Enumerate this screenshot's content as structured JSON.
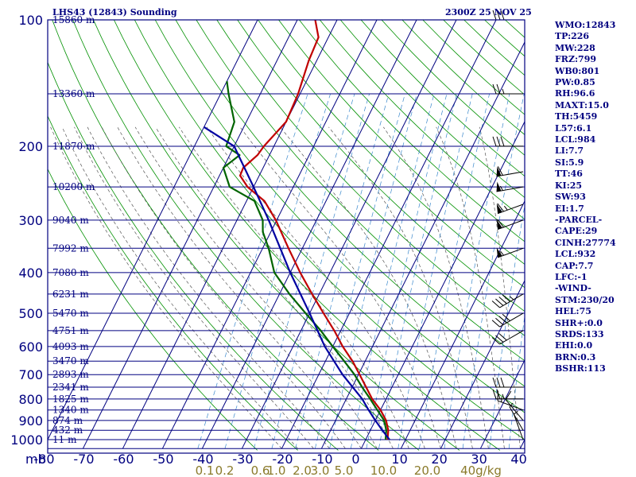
{
  "header": {
    "station_title": "LHS43 (12843) Sounding",
    "valid_time": "2300Z 25 NOV 25"
  },
  "chart_data": {
    "type": "skew-t",
    "pressure_axis": {
      "unit_label": "mb",
      "ticks": [
        100,
        200,
        300,
        400,
        500,
        600,
        700,
        800,
        900,
        1000
      ],
      "range": [
        100,
        1050
      ]
    },
    "temperature_axis": {
      "ticks": [
        "-80",
        "-70",
        "-60",
        "-50",
        "-40",
        "-30",
        "-20",
        "-10",
        "0",
        "10",
        "20",
        "30",
        "40"
      ],
      "range": [
        -80,
        40
      ]
    },
    "height_levels": [
      {
        "p": 100,
        "label": "15860 m"
      },
      {
        "p": 150,
        "label": "13360 m"
      },
      {
        "p": 200,
        "label": "11870 m"
      },
      {
        "p": 250,
        "label": "10200 m"
      },
      {
        "p": 300,
        "label": "9040 m"
      },
      {
        "p": 350,
        "label": "7992 m"
      },
      {
        "p": 400,
        "label": "7080 m"
      },
      {
        "p": 450,
        "label": "6231 m"
      },
      {
        "p": 500,
        "label": "5470 m"
      },
      {
        "p": 550,
        "label": "4751 m"
      },
      {
        "p": 600,
        "label": "4093 m"
      },
      {
        "p": 650,
        "label": "3470 m"
      },
      {
        "p": 700,
        "label": "2893 m"
      },
      {
        "p": 750,
        "label": "2341 m"
      },
      {
        "p": 800,
        "label": "1825 m"
      },
      {
        "p": 850,
        "label": "1340 m"
      },
      {
        "p": 900,
        "label": "874 m"
      },
      {
        "p": 950,
        "label": "432 m"
      },
      {
        "p": 1000,
        "label": "11 m"
      }
    ],
    "mixing_ratio_labels": [
      {
        "label": "0.1",
        "t": -40.5
      },
      {
        "label": "0.2",
        "t": -35.5
      },
      {
        "label": "0.6",
        "t": -26.5
      },
      {
        "label": "1.0",
        "t": -22.5
      },
      {
        "label": "2.0",
        "t": -16
      },
      {
        "label": "3.0",
        "t": -11.5
      },
      {
        "label": "5.0",
        "t": -5.5
      },
      {
        "label": "10.0",
        "t": 4.5
      },
      {
        "label": "20.0",
        "t": 15.5
      },
      {
        "label": "40g/kg",
        "t": 29
      }
    ],
    "series": [
      {
        "name": "temperature",
        "color": "#c00000",
        "points": [
          [
            1000,
            5.5
          ],
          [
            950,
            4.5
          ],
          [
            900,
            2.7
          ],
          [
            850,
            0
          ],
          [
            800,
            -3.5
          ],
          [
            750,
            -6.5
          ],
          [
            700,
            -9.7
          ],
          [
            650,
            -13.2
          ],
          [
            600,
            -17.5
          ],
          [
            550,
            -21.6
          ],
          [
            500,
            -26.5
          ],
          [
            450,
            -31.8
          ],
          [
            400,
            -37.5
          ],
          [
            350,
            -43.5
          ],
          [
            300,
            -50.2
          ],
          [
            270,
            -55.5
          ],
          [
            250,
            -61.5
          ],
          [
            235,
            -64.8
          ],
          [
            225,
            -65
          ],
          [
            210,
            -63
          ],
          [
            200,
            -62.5
          ],
          [
            175,
            -60
          ],
          [
            150,
            -60.5
          ],
          [
            125,
            -62
          ],
          [
            110,
            -62.5
          ],
          [
            100,
            -65.5
          ]
        ]
      },
      {
        "name": "dewpoint",
        "color": "#006400",
        "points": [
          [
            1000,
            5
          ],
          [
            950,
            4
          ],
          [
            900,
            2.2
          ],
          [
            850,
            -0.8
          ],
          [
            800,
            -4
          ],
          [
            750,
            -7.5
          ],
          [
            700,
            -11
          ],
          [
            650,
            -15.3
          ],
          [
            600,
            -20
          ],
          [
            550,
            -25
          ],
          [
            500,
            -31
          ],
          [
            450,
            -37.5
          ],
          [
            400,
            -44
          ],
          [
            350,
            -48.5
          ],
          [
            320,
            -52
          ],
          [
            300,
            -53.5
          ],
          [
            270,
            -58
          ],
          [
            250,
            -66
          ],
          [
            225,
            -70
          ],
          [
            210,
            -67.5
          ],
          [
            200,
            -72
          ],
          [
            175,
            -73
          ],
          [
            150,
            -78
          ],
          [
            140,
            -80
          ]
        ]
      },
      {
        "name": "parcel",
        "color": "#0000a0",
        "points": [
          [
            1000,
            6
          ],
          [
            950,
            3
          ],
          [
            900,
            0
          ],
          [
            850,
            -3
          ],
          [
            800,
            -6
          ],
          [
            700,
            -14
          ],
          [
            600,
            -22
          ],
          [
            500,
            -30
          ],
          [
            400,
            -40
          ],
          [
            300,
            -52
          ],
          [
            250,
            -60
          ],
          [
            200,
            -70
          ],
          [
            180,
            -80
          ]
        ]
      }
    ],
    "wind_barbs": [
      {
        "p": 100,
        "dir": 270,
        "kt": 30
      },
      {
        "p": 150,
        "dir": 270,
        "kt": 25
      },
      {
        "p": 200,
        "dir": 270,
        "kt": 30
      },
      {
        "p": 230,
        "dir": 260,
        "kt": 60
      },
      {
        "p": 250,
        "dir": 260,
        "kt": 55
      },
      {
        "p": 275,
        "dir": 250,
        "kt": 65
      },
      {
        "p": 300,
        "dir": 250,
        "kt": 60
      },
      {
        "p": 350,
        "dir": 250,
        "kt": 55
      },
      {
        "p": 450,
        "dir": 240,
        "kt": 45
      },
      {
        "p": 500,
        "dir": 240,
        "kt": 40
      },
      {
        "p": 550,
        "dir": 240,
        "kt": 30
      },
      {
        "p": 750,
        "dir": 270,
        "kt": 30
      },
      {
        "p": 800,
        "dir": 270,
        "kt": 25
      },
      {
        "p": 850,
        "dir": 290,
        "kt": 15
      },
      {
        "p": 900,
        "dir": 320,
        "kt": 10
      },
      {
        "p": 950,
        "dir": 330,
        "kt": 5
      },
      {
        "p": 1000,
        "dir": 340,
        "kt": 5
      }
    ]
  },
  "indices": [
    "WMO:12843",
    "TP:226",
    "MW:228",
    "FRZ:799",
    "WB0:801",
    "PW:0.85",
    "RH:96.6",
    "MAXT:15.0",
    "TH:5459",
    "L57:6.1",
    "LCL:984",
    "LI:7.7",
    "SI:5.9",
    "TT:46",
    "KI:25",
    "SW:93",
    "EI:1.7",
    "-PARCEL-",
    "CAPE:29",
    "CINH:27774",
    "LCL:932",
    "CAP:7.7",
    "LFC:-1",
    "-WIND-",
    "STM:230/20",
    "HEL:75",
    "SHR+:0.0",
    "SRDS:133",
    "EHI:0.0",
    "BRN:0.3",
    "BSHR:113"
  ],
  "colors": {
    "frame": "#000080",
    "isotherm": "#000080",
    "dry_adiabat": "#009000",
    "moist_adiabat": "#555555",
    "mixing_ratio": "#3a88cc",
    "mixing_ratio_label": "#8a7a2a"
  }
}
